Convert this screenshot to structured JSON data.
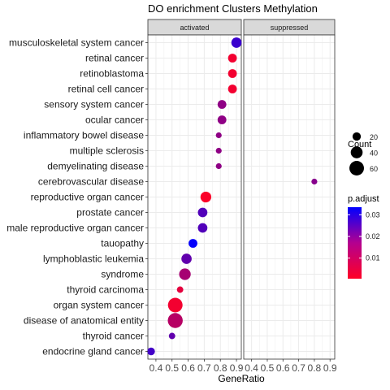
{
  "chart_data": {
    "type": "scatter",
    "title": "DO enrichment Clusters Methylation",
    "xlabel": "GeneRatio",
    "ylabel": "",
    "xlim": [
      0.35,
      0.93
    ],
    "x_ticks": [
      "0.4",
      "0.5",
      "0.6",
      "0.7",
      "0.8",
      "0.9"
    ],
    "x_tick_values": [
      0.4,
      0.5,
      0.6,
      0.7,
      0.8,
      0.9
    ],
    "grid": true,
    "panels": [
      "activated",
      "suppressed"
    ],
    "categories": [
      "musculoskeletal system cancer",
      "retinal cancer",
      "retinoblastoma",
      "retinal cell cancer",
      "sensory system cancer",
      "ocular cancer",
      "inflammatory bowel disease",
      "multiple sclerosis",
      "demyelinating disease",
      "cerebrovascular disease",
      "reproductive organ cancer",
      "prostate cancer",
      "male reproductive organ cancer",
      "tauopathy",
      "lymphoblastic leukemia",
      "syndrome",
      "thyroid carcinoma",
      "organ system cancer",
      "disease of anatomical entity",
      "thyroid cancer",
      "endocrine gland cancer"
    ],
    "points": [
      {
        "panel": "activated",
        "category": "musculoskeletal system cancer",
        "x": 0.9,
        "count": 30,
        "p_adjust": 0.026
      },
      {
        "panel": "activated",
        "category": "retinal cancer",
        "x": 0.875,
        "count": 22,
        "p_adjust": 0.002
      },
      {
        "panel": "activated",
        "category": "retinoblastoma",
        "x": 0.875,
        "count": 22,
        "p_adjust": 0.002
      },
      {
        "panel": "activated",
        "category": "retinal cell cancer",
        "x": 0.875,
        "count": 22,
        "p_adjust": 0.002
      },
      {
        "panel": "activated",
        "category": "sensory system cancer",
        "x": 0.81,
        "count": 22,
        "p_adjust": 0.015
      },
      {
        "panel": "activated",
        "category": "ocular cancer",
        "x": 0.81,
        "count": 22,
        "p_adjust": 0.015
      },
      {
        "panel": "activated",
        "category": "inflammatory bowel disease",
        "x": 0.79,
        "count": 10,
        "p_adjust": 0.015
      },
      {
        "panel": "activated",
        "category": "multiple sclerosis",
        "x": 0.79,
        "count": 10,
        "p_adjust": 0.015
      },
      {
        "panel": "activated",
        "category": "demyelinating disease",
        "x": 0.79,
        "count": 10,
        "p_adjust": 0.015
      },
      {
        "panel": "suppressed",
        "category": "cerebrovascular disease",
        "x": 0.8,
        "count": 10,
        "p_adjust": 0.016
      },
      {
        "panel": "activated",
        "category": "reproductive organ cancer",
        "x": 0.71,
        "count": 33,
        "p_adjust": 0.001
      },
      {
        "panel": "activated",
        "category": "prostate cancer",
        "x": 0.69,
        "count": 26,
        "p_adjust": 0.023
      },
      {
        "panel": "activated",
        "category": "male reproductive organ cancer",
        "x": 0.69,
        "count": 26,
        "p_adjust": 0.023
      },
      {
        "panel": "activated",
        "category": "tauopathy",
        "x": 0.63,
        "count": 22,
        "p_adjust": 0.033
      },
      {
        "panel": "activated",
        "category": "lymphoblastic leukemia",
        "x": 0.59,
        "count": 30,
        "p_adjust": 0.021
      },
      {
        "panel": "activated",
        "category": "syndrome",
        "x": 0.58,
        "count": 38,
        "p_adjust": 0.012
      },
      {
        "panel": "activated",
        "category": "thyroid carcinoma",
        "x": 0.55,
        "count": 12,
        "p_adjust": 0.004
      },
      {
        "panel": "activated",
        "category": "organ system cancer",
        "x": 0.52,
        "count": 60,
        "p_adjust": 0.002
      },
      {
        "panel": "activated",
        "category": "disease of anatomical entity",
        "x": 0.52,
        "count": 63,
        "p_adjust": 0.01
      },
      {
        "panel": "activated",
        "category": "thyroid cancer",
        "x": 0.5,
        "count": 12,
        "p_adjust": 0.021
      },
      {
        "panel": "activated",
        "category": "endocrine gland cancer",
        "x": 0.37,
        "count": 17,
        "p_adjust": 0.025
      }
    ],
    "legend_count": {
      "title": "Count",
      "values": [
        20,
        40,
        60
      ],
      "position": "right"
    },
    "legend_color": {
      "title": "p.adjust",
      "ticks": [
        0.03,
        0.02,
        0.01
      ],
      "tick_labels": [
        "0.03",
        "0.02",
        "0.01"
      ],
      "range": [
        0.0005,
        0.0335
      ],
      "low_color": "#ff0026",
      "high_color": "#0000ff",
      "position": "right"
    }
  }
}
